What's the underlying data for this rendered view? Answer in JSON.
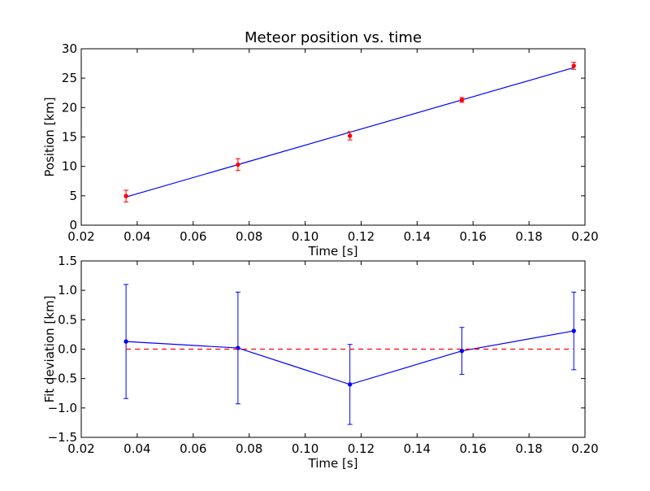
{
  "chart_data": [
    {
      "type": "line",
      "title": "Meteor position vs. time",
      "xlabel": "Time [s]",
      "ylabel": "Position [km]",
      "xlim": [
        0.02,
        0.2
      ],
      "ylim": [
        0,
        30
      ],
      "xticks": [
        "0.02",
        "0.04",
        "0.06",
        "0.08",
        "0.10",
        "0.12",
        "0.14",
        "0.16",
        "0.18",
        "0.20"
      ],
      "yticks": [
        "0",
        "5",
        "10",
        "15",
        "20",
        "25",
        "30"
      ],
      "grid": false,
      "series": [
        {
          "style": "fit-line",
          "color": "#0000ff",
          "x": [
            0.036,
            0.076,
            0.116,
            0.156,
            0.196
          ],
          "y": [
            4.8,
            10.3,
            15.8,
            21.3,
            26.8
          ]
        },
        {
          "style": "points-with-errorbars",
          "color": "#ff0000",
          "x": [
            0.036,
            0.076,
            0.116,
            0.156,
            0.196
          ],
          "y": [
            4.95,
            10.3,
            15.2,
            21.3,
            27.1
          ],
          "err": [
            1.0,
            1.0,
            0.7,
            0.4,
            0.6
          ]
        }
      ]
    },
    {
      "type": "line",
      "title": "",
      "xlabel": "Time [s]",
      "ylabel": "Fit deviation [km]",
      "xlim": [
        0.02,
        0.2
      ],
      "ylim": [
        -1.5,
        1.5
      ],
      "xticks": [
        "0.02",
        "0.04",
        "0.06",
        "0.08",
        "0.10",
        "0.12",
        "0.14",
        "0.16",
        "0.18",
        "0.20"
      ],
      "yticks": [
        "−1.5",
        "−1.0",
        "−0.5",
        "0.0",
        "0.5",
        "1.0",
        "1.5"
      ],
      "grid": false,
      "series": [
        {
          "style": "line-with-errorbars",
          "color": "#0000ff",
          "x": [
            0.036,
            0.076,
            0.116,
            0.156,
            0.196
          ],
          "y": [
            0.13,
            0.02,
            -0.6,
            -0.03,
            0.31
          ],
          "err": [
            0.97,
            0.95,
            0.68,
            0.4,
            0.66
          ]
        },
        {
          "style": "dashed-reference",
          "color": "#ff0000",
          "x": [
            0.036,
            0.196
          ],
          "y": [
            0.0,
            0.0
          ]
        }
      ]
    }
  ]
}
